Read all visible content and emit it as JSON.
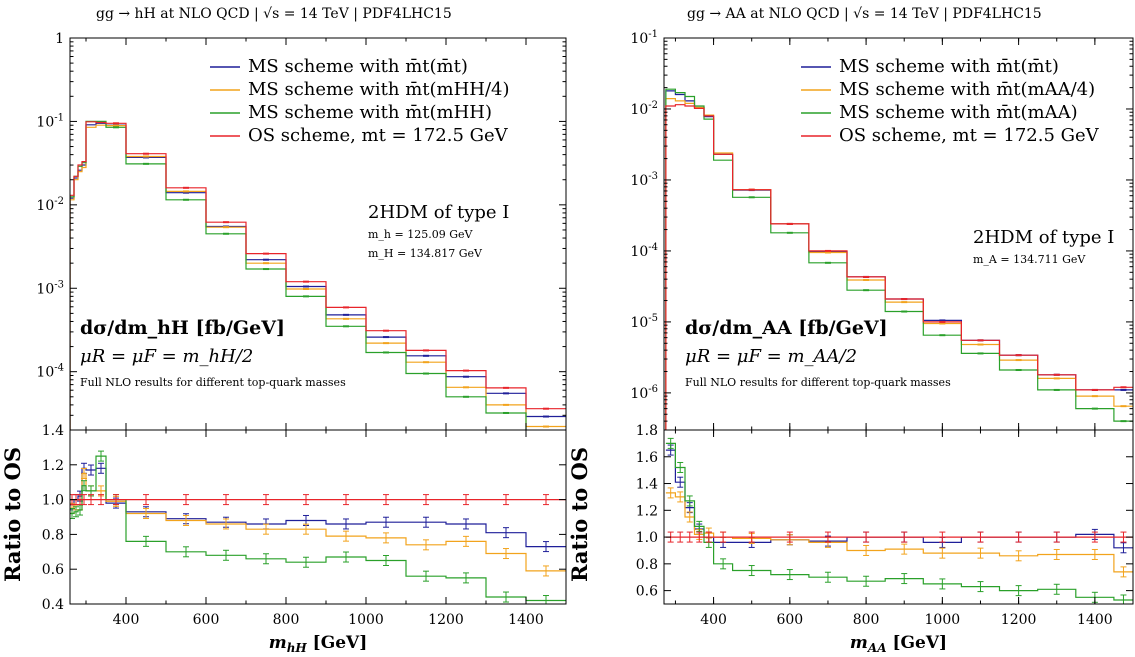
{
  "chart_data": [
    {
      "type": "step",
      "title": "gg → hH at NLO QCD | √s = 14 TeV | PDF4LHC15",
      "xlabel": "m_hH [GeV]",
      "top_label": "dσ/dm_hH [fb/GeV]",
      "ylabel_ratio": "Ratio to OS",
      "scale_label": "μR = μF = m_hH/2",
      "note": "Full NLO results for different top-quark masses",
      "model": "2HDM of type I",
      "masses": [
        "m_h = 125.09 GeV",
        "m_H = 134.817 GeV"
      ],
      "legend_position": "top-right",
      "xlim": [
        260,
        1500
      ],
      "ylim_top_log": [
        2e-05,
        1
      ],
      "ylim_ratio": [
        0.4,
        1.4
      ],
      "xticks": [
        400,
        600,
        800,
        1000,
        1200,
        1400
      ],
      "yticks_top": [
        {
          "v": 1,
          "label": "1"
        },
        {
          "v": 0.1,
          "label": "10-1"
        },
        {
          "v": 0.01,
          "label": "10-2"
        },
        {
          "v": 0.001,
          "label": "10-3"
        },
        {
          "v": 0.0001,
          "label": "10-4"
        }
      ],
      "yticks_ratio": [
        {
          "v": 1.4,
          "label": "1.4"
        },
        {
          "v": 1.2,
          "label": "1.2"
        },
        {
          "v": 1.0,
          "label": "1.0"
        },
        {
          "v": 0.8,
          "label": "0.8"
        },
        {
          "v": 0.6,
          "label": "0.6"
        },
        {
          "v": 0.4,
          "label": "0.4"
        }
      ],
      "bin_edges": [
        260,
        270,
        280,
        290,
        300,
        325,
        350,
        400,
        500,
        600,
        700,
        800,
        900,
        1000,
        1100,
        1200,
        1300,
        1400,
        1500
      ],
      "series": [
        {
          "name": "MS scheme with m̄t(m̄t)",
          "color": "#1f1f99",
          "values": [
            0.012,
            0.021,
            0.026,
            0.03,
            0.091,
            0.095,
            0.09,
            0.037,
            0.014,
            0.0055,
            0.0022,
            0.00105,
            0.00048,
            0.00026,
            0.000155,
            8.7e-05,
            5.5e-05,
            2.9e-05
          ],
          "ratio": [
            0.97,
            1.0,
            1.02,
            1.18,
            1.17,
            1.18,
            0.98,
            0.93,
            0.89,
            0.87,
            0.86,
            0.88,
            0.86,
            0.87,
            0.87,
            0.86,
            0.81,
            0.73
          ]
        },
        {
          "name": "MS scheme with m̄t(mHH/4)",
          "color": "#f2a31c",
          "values": [
            0.0115,
            0.02,
            0.025,
            0.028,
            0.085,
            0.09,
            0.089,
            0.038,
            0.0145,
            0.0054,
            0.002,
            0.00098,
            0.00043,
            0.00022,
            0.00013,
            6.5e-05,
            4e-05,
            2.2e-05
          ],
          "ratio": [
            0.95,
            0.97,
            0.97,
            1.15,
            1.05,
            1.05,
            0.99,
            0.92,
            0.88,
            0.86,
            0.83,
            0.83,
            0.79,
            0.78,
            0.74,
            0.76,
            0.69,
            0.59
          ]
        },
        {
          "name": "MS scheme with m̄t(mHH)",
          "color": "#2aa02a",
          "values": [
            0.0125,
            0.022,
            0.029,
            0.032,
            0.1,
            0.1,
            0.085,
            0.031,
            0.0115,
            0.0045,
            0.0017,
            0.0008,
            0.00035,
            0.00017,
            9.5e-05,
            5e-05,
            3.2e-05,
            1.8e-05
          ],
          "ratio": [
            0.92,
            0.93,
            0.94,
            1.08,
            1.05,
            1.25,
            1.0,
            0.76,
            0.7,
            0.68,
            0.66,
            0.64,
            0.67,
            0.65,
            0.56,
            0.55,
            0.44,
            0.42
          ]
        },
        {
          "name": "OS scheme, mt = 172.5 GeV",
          "color": "#e8242a",
          "values": [
            0.013,
            0.022,
            0.03,
            0.033,
            0.099,
            0.097,
            0.095,
            0.041,
            0.016,
            0.0062,
            0.0026,
            0.0012,
            0.00059,
            0.00031,
            0.00018,
            0.000103,
            6.4e-05,
            3.6e-05
          ],
          "ratio": [
            1,
            1,
            1,
            1,
            1,
            1,
            1,
            1,
            1,
            1,
            1,
            1,
            1,
            1,
            1,
            1,
            1,
            1
          ]
        }
      ]
    },
    {
      "type": "step",
      "title": "gg → AA at NLO QCD | √s = 14 TeV | PDF4LHC15",
      "xlabel": "m_AA [GeV]",
      "top_label": "dσ/dm_AA [fb/GeV]",
      "ylabel_ratio": "Ratio to OS",
      "scale_label": "μR = μF = m_AA/2",
      "note": "Full NLO results for different top-quark masses",
      "model": "2HDM of type I",
      "masses": [
        "m_A = 134.711 GeV"
      ],
      "legend_position": "top-right",
      "xlim": [
        270,
        1500
      ],
      "ylim_top_log": [
        3e-07,
        0.1
      ],
      "ylim_ratio": [
        0.5,
        1.8
      ],
      "xticks": [
        400,
        600,
        800,
        1000,
        1200,
        1400
      ],
      "yticks_top": [
        {
          "v": 0.1,
          "label": "10-1"
        },
        {
          "v": 0.01,
          "label": "10-2"
        },
        {
          "v": 0.001,
          "label": "10-3"
        },
        {
          "v": 0.0001,
          "label": "10-4"
        },
        {
          "v": 1e-05,
          "label": "10-5"
        },
        {
          "v": 1e-06,
          "label": "10-6"
        }
      ],
      "yticks_ratio": [
        {
          "v": 1.8,
          "label": "1.8"
        },
        {
          "v": 1.6,
          "label": "1.6"
        },
        {
          "v": 1.4,
          "label": "1.4"
        },
        {
          "v": 1.2,
          "label": "1.2"
        },
        {
          "v": 1.0,
          "label": "1.0"
        },
        {
          "v": 0.8,
          "label": "0.8"
        },
        {
          "v": 0.6,
          "label": "0.6"
        }
      ],
      "bin_edges": [
        275,
        300,
        325,
        350,
        375,
        400,
        450,
        550,
        650,
        750,
        850,
        950,
        1050,
        1150,
        1250,
        1350,
        1450,
        1500
      ],
      "series": [
        {
          "name": "MS scheme with m̄t(m̄t)",
          "color": "#1f1f99",
          "values": [
            0.018,
            0.016,
            0.013,
            0.0105,
            0.0078,
            0.0023,
            0.00072,
            0.00024,
            9.8e-05,
            4.3e-05,
            2.1e-05,
            1.05e-05,
            5.5e-06,
            3.4e-06,
            1.8e-06,
            1.1e-06,
            1.1e-06
          ],
          "ratio": [
            1.65,
            1.41,
            1.22,
            1.06,
            1.0,
            0.96,
            0.96,
            0.98,
            0.97,
            1.0,
            1.0,
            0.96,
            1.0,
            1.0,
            1.0,
            1.02,
            0.92
          ]
        },
        {
          "name": "MS scheme with m̄t(mAA/4)",
          "color": "#f2a31c",
          "values": [
            0.014,
            0.013,
            0.012,
            0.0105,
            0.0082,
            0.0024,
            0.00073,
            0.00024,
            9.5e-05,
            3.9e-05,
            1.9e-05,
            9.5e-06,
            4.8e-06,
            2.9e-06,
            1.6e-06,
            9e-07,
            6.5e-07
          ],
          "ratio": [
            1.33,
            1.3,
            1.15,
            1.02,
            1.03,
            1.0,
            0.99,
            0.98,
            0.96,
            0.9,
            0.91,
            0.88,
            0.88,
            0.86,
            0.87,
            0.87,
            0.74
          ]
        },
        {
          "name": "MS scheme with m̄t(mAA)",
          "color": "#2aa02a",
          "values": [
            0.019,
            0.017,
            0.015,
            0.011,
            0.0072,
            0.0019,
            0.00057,
            0.00018,
            6.8e-05,
            2.8e-05,
            1.4e-05,
            6.5e-06,
            3.6e-06,
            2.1e-06,
            1.1e-06,
            6e-07,
            4e-07
          ],
          "ratio": [
            1.7,
            1.52,
            1.27,
            1.08,
            0.96,
            0.8,
            0.75,
            0.72,
            0.7,
            0.67,
            0.69,
            0.65,
            0.63,
            0.6,
            0.61,
            0.55,
            0.53
          ]
        },
        {
          "name": "OS scheme, mt = 172.5 GeV",
          "color": "#e8242a",
          "values": [
            0.011,
            0.0115,
            0.011,
            0.0102,
            0.008,
            0.0023,
            0.00073,
            0.00024,
            0.0001,
            4.3e-05,
            2.1e-05,
            1e-05,
            5.5e-06,
            3.4e-06,
            1.8e-06,
            1.1e-06,
            1.2e-06
          ],
          "ratio": [
            1,
            1,
            1,
            1,
            1,
            1,
            1,
            1,
            1,
            1,
            1,
            1,
            1,
            1,
            1,
            1,
            1
          ]
        }
      ]
    }
  ]
}
